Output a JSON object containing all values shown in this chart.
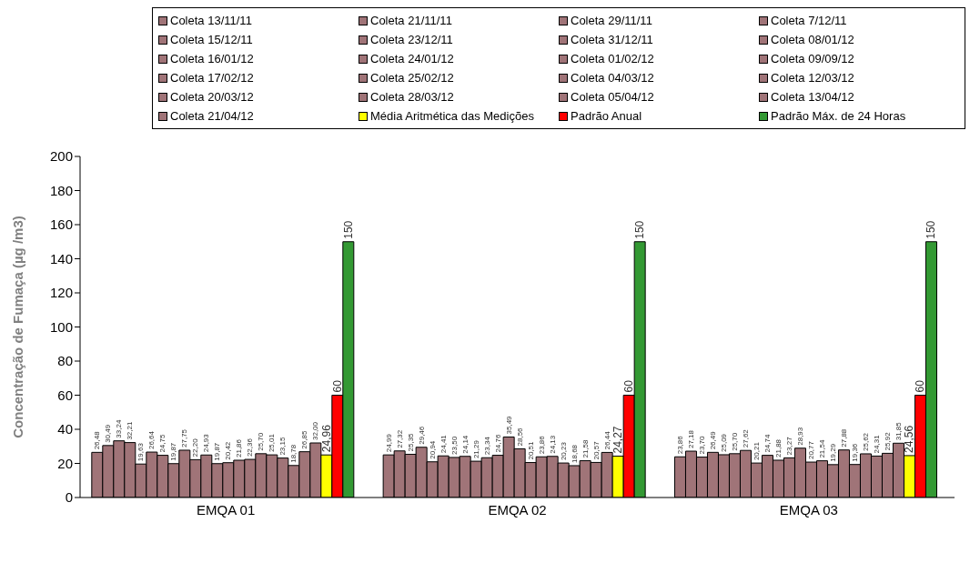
{
  "chart_data": {
    "type": "bar",
    "ylabel": "Concentração de Fumaça (µg /m3)",
    "categories": [
      "EMQA 01",
      "EMQA 02",
      "EMQA 03"
    ],
    "ylim": [
      0,
      200
    ],
    "yticks": [
      0,
      20,
      40,
      60,
      80,
      100,
      120,
      140,
      160,
      180,
      200
    ],
    "legend": "top",
    "series": [
      {
        "name": "Coleta 13/11/11",
        "color": "#a07478",
        "values": [
          26.48,
          24.99,
          23.86
        ],
        "value_labels": [
          "26,48",
          "24,99",
          "23,86"
        ]
      },
      {
        "name": "Coleta 21/11/11",
        "color": "#a07478",
        "values": [
          30.49,
          27.32,
          27.18
        ],
        "value_labels": [
          "30,49",
          "27,32",
          "27,18"
        ]
      },
      {
        "name": "Coleta 29/11/11",
        "color": "#a07478",
        "values": [
          33.24,
          25.35,
          23.7
        ],
        "value_labels": [
          "33,24",
          "25,35",
          "23,70"
        ]
      },
      {
        "name": "Coleta 7/12/11",
        "color": "#a07478",
        "values": [
          32.21,
          29.46,
          26.49
        ],
        "value_labels": [
          "32,21",
          "29,46",
          "26,49"
        ]
      },
      {
        "name": "Coleta 15/12/11",
        "color": "#a07478",
        "values": [
          19.63,
          20.94,
          25.09
        ],
        "value_labels": [
          "19,63",
          "20,94",
          "25,09"
        ]
      },
      {
        "name": "Coleta 23/12/11",
        "color": "#a07478",
        "values": [
          26.64,
          24.41,
          25.7
        ],
        "value_labels": [
          "26,64",
          "24,41",
          "25,70"
        ]
      },
      {
        "name": "Coleta 31/12/11",
        "color": "#a07478",
        "values": [
          24.75,
          23.5,
          27.62
        ],
        "value_labels": [
          "24,75",
          "23,50",
          "27,62"
        ]
      },
      {
        "name": "Coleta 08/01/12",
        "color": "#a07478",
        "values": [
          19.87,
          24.14,
          20.21
        ],
        "value_labels": [
          "19,87",
          "24,14",
          "20,21"
        ]
      },
      {
        "name": "Coleta 16/01/12",
        "color": "#a07478",
        "values": [
          27.75,
          21.29,
          24.74
        ],
        "value_labels": [
          "27,75",
          "21,29",
          "24,74"
        ]
      },
      {
        "name": "Coleta 24/01/12",
        "color": "#a07478",
        "values": [
          22.2,
          23.34,
          21.88
        ],
        "value_labels": [
          "22,20",
          "23,34",
          "21,88"
        ]
      },
      {
        "name": "Coleta 01/02/12",
        "color": "#a07478",
        "values": [
          24.93,
          24.76,
          23.27
        ],
        "value_labels": [
          "24,93",
          "24,76",
          "23,27"
        ]
      },
      {
        "name": "Coleta 09/09/12",
        "color": "#a07478",
        "values": [
          19.87,
          35.49,
          28.93
        ],
        "value_labels": [
          "19,87",
          "35,49",
          "28,93"
        ]
      },
      {
        "name": "Coleta 17/02/12",
        "color": "#a07478",
        "values": [
          20.42,
          28.56,
          20.77
        ],
        "value_labels": [
          "20,42",
          "28,56",
          "20,77"
        ]
      },
      {
        "name": "Coleta 25/02/12",
        "color": "#a07478",
        "values": [
          21.86,
          20.51,
          21.54
        ],
        "value_labels": [
          "21,86",
          "20,51",
          "21,54"
        ]
      },
      {
        "name": "Coleta 04/03/12",
        "color": "#a07478",
        "values": [
          22.36,
          23.86,
          19.29
        ],
        "value_labels": [
          "22,36",
          "23,86",
          "19,29"
        ]
      },
      {
        "name": "Coleta 12/03/12",
        "color": "#a07478",
        "values": [
          25.7,
          24.13,
          27.88
        ],
        "value_labels": [
          "25,70",
          "24,13",
          "27,88"
        ]
      },
      {
        "name": "Coleta 20/03/12",
        "color": "#a07478",
        "values": [
          25.01,
          20.23,
          19.36
        ],
        "value_labels": [
          "25,01",
          "20,23",
          "19,36"
        ]
      },
      {
        "name": "Coleta 28/03/12",
        "color": "#a07478",
        "values": [
          23.15,
          18.68,
          25.62
        ],
        "value_labels": [
          "23,15",
          "18,68",
          "25,62"
        ]
      },
      {
        "name": "Coleta 05/04/12",
        "color": "#a07478",
        "values": [
          18.78,
          21.58,
          24.31
        ],
        "value_labels": [
          "18,78",
          "21,58",
          "24,31"
        ]
      },
      {
        "name": "Coleta 13/04/12",
        "color": "#a07478",
        "values": [
          26.85,
          20.57,
          25.92
        ],
        "value_labels": [
          "26,85",
          "20,57",
          "25,92"
        ]
      },
      {
        "name": "Coleta 21/04/12",
        "color": "#a07478",
        "values": [
          32.0,
          26.44,
          31.85
        ],
        "value_labels": [
          "32,00",
          "26,44",
          "31,85"
        ]
      },
      {
        "name": "Média Aritmética das Medições",
        "color": "#ffff00",
        "values": [
          24.96,
          24.27,
          24.56
        ],
        "value_labels": [
          "24,96",
          "24,27",
          "24,56"
        ]
      },
      {
        "name": "Padrão Anual",
        "color": "#ff0000",
        "values": [
          60,
          60,
          60
        ],
        "value_labels": [
          "60",
          "60",
          "60"
        ]
      },
      {
        "name": "Padrão Máx. de 24 Horas",
        "color": "#339933",
        "values": [
          150,
          150,
          150
        ],
        "value_labels": [
          "150",
          "150",
          "150"
        ]
      }
    ]
  }
}
